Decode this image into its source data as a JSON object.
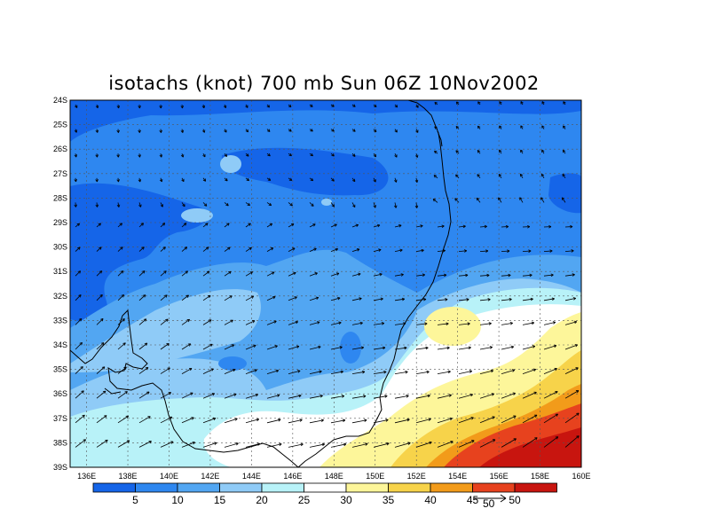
{
  "title": "isotachs (knot) 700 mb Sun 06Z 10Nov2002",
  "map": {
    "lat_labels": [
      "24S",
      "25S",
      "26S",
      "27S",
      "28S",
      "29S",
      "30S",
      "31S",
      "32S",
      "33S",
      "34S",
      "35S",
      "36S",
      "37S",
      "38S",
      "39S"
    ],
    "lon_labels": [
      "136E",
      "138E",
      "140E",
      "142E",
      "144E",
      "146E",
      "148E",
      "150E",
      "152E",
      "154E",
      "156E",
      "158E",
      "160E"
    ],
    "lat_range": [
      -39,
      -24
    ],
    "lon_range": [
      135.2,
      160
    ],
    "grid": true
  },
  "colorbar": {
    "colors": [
      "#1565e8",
      "#2e87f0",
      "#52a6f2",
      "#8fcbf7",
      "#b8f2f8",
      "#ffffff",
      "#fdf69a",
      "#f7d34a",
      "#f29b1a",
      "#e7421e",
      "#c8150f"
    ],
    "labels": [
      "5",
      "10",
      "15",
      "20",
      "25",
      "30",
      "35",
      "40",
      "45",
      "50"
    ]
  },
  "vector_key": {
    "label": "50"
  },
  "colors": {
    "coast": "#000000",
    "grid": "#555555"
  }
}
